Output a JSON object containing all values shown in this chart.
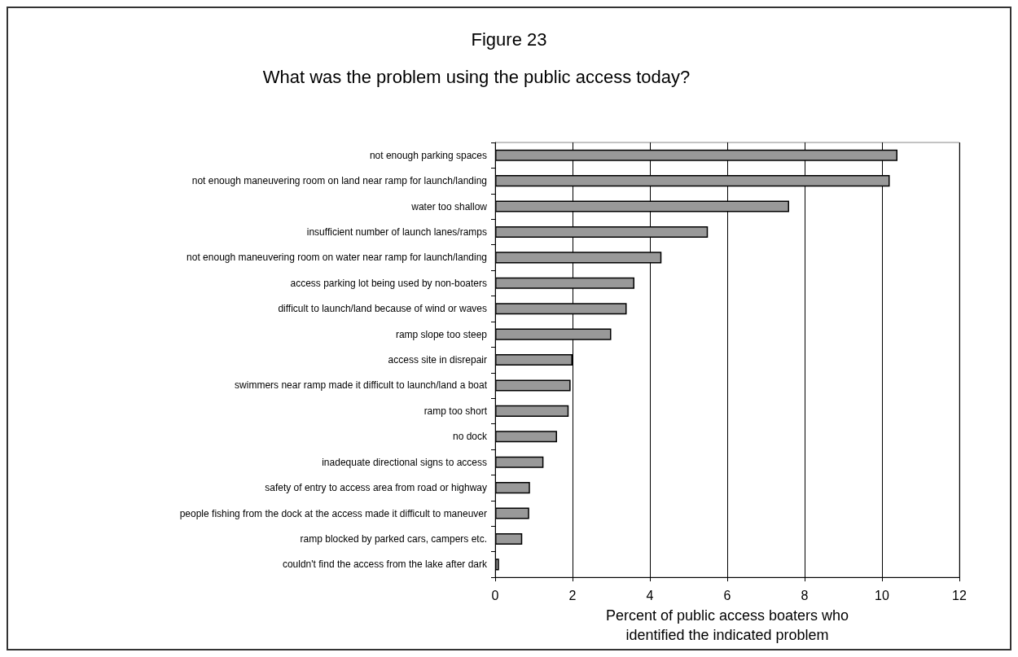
{
  "chart_data": {
    "type": "bar",
    "orientation": "horizontal",
    "title": "Figure 23",
    "subtitle": "What was the problem using the public access today?",
    "xlabel": "Percent of public access boaters who identified the indicated problem",
    "categories": [
      "not enough parking spaces",
      "not enough maneuvering room on land near ramp for launch/landing",
      "water too shallow",
      "insufficient number of launch lanes/ramps",
      "not enough maneuvering room on water near ramp for launch/landing",
      "access parking lot being used by non-boaters",
      "difficult to launch/land because of wind or waves",
      "ramp slope too steep",
      "access site in disrepair",
      "swimmers near ramp made it difficult to launch/land a boat",
      "ramp too short",
      "no dock",
      "inadequate directional signs to access",
      "safety of entry to access area from road or highway",
      "people fishing from the dock at the access made it difficult to maneuver",
      "ramp blocked by parked cars, campers etc.",
      "couldn't find the access from the lake after dark"
    ],
    "values": [
      10.4,
      10.2,
      7.6,
      5.5,
      4.3,
      3.6,
      3.4,
      3.0,
      2.0,
      1.95,
      1.9,
      1.6,
      1.25,
      0.9,
      0.88,
      0.7,
      0.1
    ],
    "color": "#999999",
    "xlim": [
      0,
      12
    ],
    "xticks": [
      0,
      2,
      4,
      6,
      8,
      10,
      12
    ],
    "grid": "x"
  }
}
